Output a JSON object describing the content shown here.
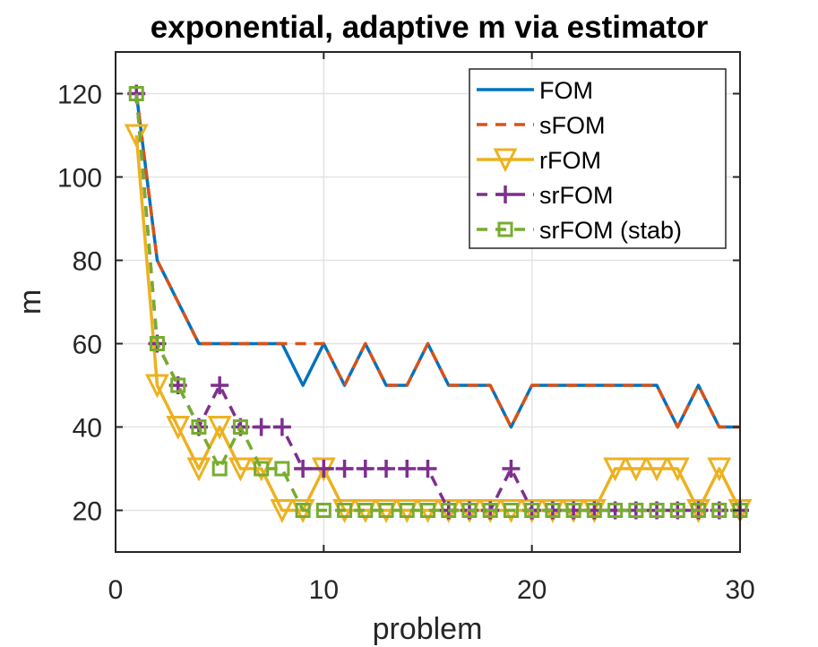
{
  "chart_data": {
    "type": "line",
    "title": "exponential, adaptive m via estimator",
    "xlabel": "problem",
    "ylabel": "m",
    "xlim": [
      0,
      30
    ],
    "ylim": [
      10,
      130
    ],
    "xticks": [
      0,
      10,
      20,
      30
    ],
    "yticks": [
      20,
      40,
      60,
      80,
      100,
      120
    ],
    "grid": true,
    "legend_position": "top-right",
    "x": [
      1,
      2,
      3,
      4,
      5,
      6,
      7,
      8,
      9,
      10,
      11,
      12,
      13,
      14,
      15,
      16,
      17,
      18,
      19,
      20,
      21,
      22,
      23,
      24,
      25,
      26,
      27,
      28,
      29,
      30
    ],
    "series": [
      {
        "name": "FOM",
        "color": "#0072BD",
        "dash": "",
        "marker": "none",
        "values": [
          120,
          80,
          70,
          60,
          60,
          60,
          60,
          60,
          50,
          60,
          50,
          60,
          50,
          50,
          60,
          50,
          50,
          50,
          40,
          50,
          50,
          50,
          50,
          50,
          50,
          50,
          40,
          50,
          40,
          40
        ]
      },
      {
        "name": "sFOM",
        "color": "#D95319",
        "dash": "12,9",
        "marker": "none",
        "values": [
          120,
          80,
          70,
          60,
          60,
          60,
          60,
          60,
          60,
          60,
          50,
          60,
          50,
          50,
          60,
          50,
          50,
          50,
          40,
          50,
          50,
          50,
          50,
          50,
          50,
          50,
          40,
          50,
          40,
          40
        ]
      },
      {
        "name": "rFOM",
        "color": "#EDB120",
        "dash": "",
        "marker": "triangle-down",
        "values": [
          110,
          50,
          40,
          30,
          40,
          30,
          30,
          20,
          20,
          30,
          20,
          20,
          20,
          20,
          20,
          20,
          20,
          20,
          20,
          20,
          20,
          20,
          20,
          30,
          30,
          30,
          30,
          20,
          30,
          20
        ]
      },
      {
        "name": "srFOM",
        "color": "#7E2F8E",
        "dash": "12,9",
        "marker": "plus",
        "values": [
          120,
          60,
          50,
          40,
          50,
          40,
          40,
          40,
          30,
          30,
          30,
          30,
          30,
          30,
          30,
          20,
          20,
          20,
          30,
          20,
          20,
          20,
          20,
          20,
          20,
          20,
          20,
          20,
          20,
          20
        ]
      },
      {
        "name": "srFOM (stab)",
        "color": "#77AC30",
        "dash": "12,9",
        "marker": "square",
        "values": [
          120,
          60,
          50,
          40,
          30,
          40,
          30,
          30,
          20,
          20,
          20,
          20,
          20,
          20,
          20,
          20,
          20,
          20,
          20,
          20,
          20,
          20,
          20,
          20,
          20,
          20,
          20,
          20,
          20,
          20
        ]
      }
    ]
  }
}
